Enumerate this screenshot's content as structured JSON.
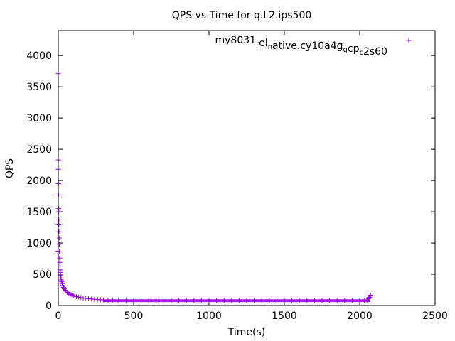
{
  "chart_data": {
    "type": "scatter",
    "title": "QPS vs Time for q.L2.ips500",
    "xlabel": "Time(s)",
    "ylabel": "QPS",
    "xlim": [
      0,
      2500
    ],
    "ylim": [
      0,
      4400
    ],
    "xticks": [
      0,
      500,
      1000,
      1500,
      2000,
      2500
    ],
    "yticks": [
      0,
      500,
      1000,
      1500,
      2000,
      2500,
      3000,
      3500,
      4000
    ],
    "grid": false,
    "legend_position": "top-right",
    "marker": "+",
    "series": [
      {
        "name_parts": [
          {
            "text": "my8031",
            "sub": false
          },
          {
            "text": "r",
            "sub": true
          },
          {
            "text": "el",
            "sub": false
          },
          {
            "text": "n",
            "sub": true
          },
          {
            "text": "ative.cy10a4g",
            "sub": false
          },
          {
            "text": "g",
            "sub": true
          },
          {
            "text": "cp",
            "sub": false
          },
          {
            "text": "c",
            "sub": true
          },
          {
            "text": "2s60",
            "sub": false
          }
        ],
        "color": "#9400d3",
        "points": [
          [
            0,
            3710
          ],
          [
            0,
            860
          ],
          [
            1,
            2330
          ],
          [
            1,
            2180
          ],
          [
            2,
            1950
          ],
          [
            2,
            1770
          ],
          [
            3,
            1550
          ],
          [
            3,
            1500
          ],
          [
            4,
            1370
          ],
          [
            4,
            1290
          ],
          [
            5,
            1180
          ],
          [
            6,
            1080
          ],
          [
            7,
            980
          ],
          [
            8,
            870
          ],
          [
            9,
            760
          ],
          [
            10,
            690
          ],
          [
            11,
            630
          ],
          [
            12,
            570
          ],
          [
            14,
            530
          ],
          [
            16,
            480
          ],
          [
            18,
            440
          ],
          [
            20,
            410
          ],
          [
            23,
            380
          ],
          [
            26,
            350
          ],
          [
            30,
            320
          ],
          [
            35,
            290
          ],
          [
            40,
            265
          ],
          [
            45,
            245
          ],
          [
            50,
            230
          ],
          [
            60,
            210
          ],
          [
            70,
            195
          ],
          [
            80,
            180
          ],
          [
            90,
            170
          ],
          [
            100,
            160
          ],
          [
            110,
            150
          ],
          [
            120,
            142
          ],
          [
            135,
            135
          ],
          [
            150,
            128
          ],
          [
            165,
            120
          ],
          [
            180,
            115
          ],
          [
            200,
            110
          ],
          [
            220,
            104
          ],
          [
            240,
            100
          ],
          [
            260,
            96
          ],
          [
            280,
            93
          ],
          [
            300,
            90
          ],
          [
            330,
            88
          ],
          [
            360,
            86
          ],
          [
            400,
            84
          ],
          [
            450,
            82
          ],
          [
            500,
            80
          ],
          [
            550,
            80
          ],
          [
            600,
            79
          ],
          [
            650,
            80
          ],
          [
            700,
            80
          ],
          [
            750,
            81
          ],
          [
            800,
            80
          ],
          [
            850,
            80
          ],
          [
            900,
            80
          ],
          [
            950,
            81
          ],
          [
            1000,
            80
          ],
          [
            1050,
            80
          ],
          [
            1100,
            80
          ],
          [
            1150,
            80
          ],
          [
            1200,
            80
          ],
          [
            1250,
            79
          ],
          [
            1300,
            80
          ],
          [
            1350,
            80
          ],
          [
            1400,
            80
          ],
          [
            1450,
            80
          ],
          [
            1500,
            80
          ],
          [
            1550,
            80
          ],
          [
            1600,
            80
          ],
          [
            1650,
            80
          ],
          [
            1700,
            80
          ],
          [
            1750,
            80
          ],
          [
            1800,
            80
          ],
          [
            1850,
            80
          ],
          [
            1900,
            80
          ],
          [
            1950,
            80
          ],
          [
            2000,
            80
          ],
          [
            2030,
            82
          ],
          [
            2050,
            90
          ],
          [
            2060,
            110
          ],
          [
            2065,
            130
          ],
          [
            2070,
            150
          ],
          [
            2072,
            165
          ]
        ],
        "band": {
          "x_range": [
            300,
            2070
          ],
          "low": 55,
          "high": 100
        }
      }
    ]
  }
}
